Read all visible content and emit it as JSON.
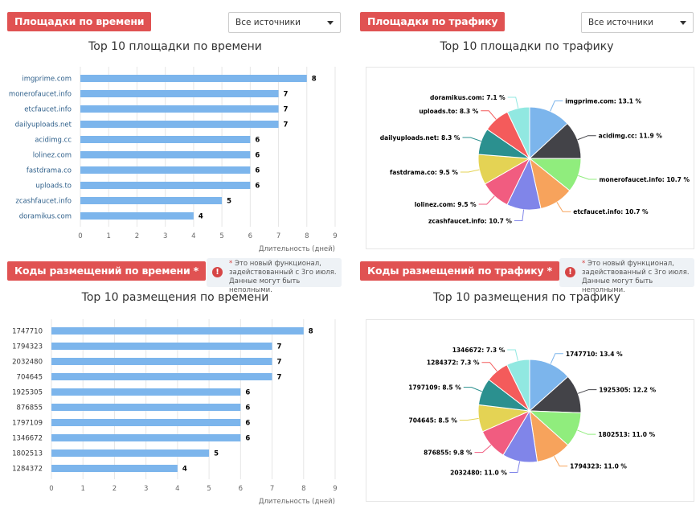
{
  "panels": [
    {
      "badge": "Площадки по времени",
      "select": "Все источники",
      "title": "Top 10 площадки по времени"
    },
    {
      "badge": "Площадки по трафику",
      "select": "Все источники",
      "title": "Top 10 площадки по трафику"
    },
    {
      "badge": "Коды размещений по времени *",
      "title": "Top 10 размещения по времени",
      "notice": {
        "star": "*",
        "text": " Это новый функционал, задействованный с 3го июля. Данные могут быть неполными."
      }
    },
    {
      "badge": "Коды размещений по трафику *",
      "title": "Top 10 размещения по трафику",
      "notice": {
        "star": "*",
        "text": " Это новый функционал, задействованный с 3го июля. Данные могут быть неполными."
      }
    }
  ],
  "chart_data": [
    {
      "type": "bar",
      "orientation": "horizontal",
      "title": "Top 10 площадки по времени",
      "categories": [
        "imgprime.com",
        "monerofaucet.info",
        "etcfaucet.info",
        "dailyuploads.net",
        "acidimg.cc",
        "lolinez.com",
        "fastdrama.co",
        "uploads.to",
        "zcashfaucet.info",
        "doramikus.com"
      ],
      "values": [
        8,
        7,
        7,
        7,
        6,
        6,
        6,
        6,
        5,
        4
      ],
      "xlabel": "Длительность (дней)",
      "xlim": [
        0,
        9
      ],
      "xticks": [
        "0",
        "1",
        "2",
        "3",
        "4",
        "5",
        "6",
        "7",
        "8",
        "9"
      ],
      "color": "#7cb5ec",
      "grid": true
    },
    {
      "type": "pie",
      "title": "Top 10 площадки по трафику",
      "labels": [
        "imgprime.com",
        "acidimg.cc",
        "monerofaucet.info",
        "etcfaucet.info",
        "zcashfaucet.info",
        "lolinez.com",
        "fastdrama.co",
        "dailyuploads.net",
        "uploads.to",
        "doramikus.com"
      ],
      "values": [
        13.1,
        11.9,
        10.7,
        10.7,
        10.7,
        9.5,
        9.5,
        8.3,
        8.3,
        7.1
      ],
      "label_texts": [
        "imgprime.com: 13.1 %",
        "acidimg.cc: 11.9 %",
        "monerofaucet.info: 10.7 %",
        "etcfaucet.info: 10.7 %",
        "zcashfaucet.info: 10.7 %",
        "lolinez.com: 9.5 %",
        "fastdrama.co: 9.5 %",
        "dailyuploads.net: 8.3 %",
        "uploads.to: 8.3 %",
        "doramikus.com: 7.1 %"
      ],
      "colors": [
        "#7cb5ec",
        "#434348",
        "#90ed7d",
        "#f7a35c",
        "#8085e9",
        "#f15c80",
        "#e4d354",
        "#2b908f",
        "#f45b5b",
        "#91e8e1"
      ]
    },
    {
      "type": "bar",
      "orientation": "horizontal",
      "title": "Top 10 размещения по времени",
      "categories": [
        "1747710",
        "1794323",
        "2032480",
        "704645",
        "1925305",
        "876855",
        "1797109",
        "1346672",
        "1802513",
        "1284372"
      ],
      "values": [
        8,
        7,
        7,
        7,
        6,
        6,
        6,
        6,
        5,
        4
      ],
      "xlabel": "Длительность (дней)",
      "xlim": [
        0,
        9
      ],
      "xticks": [
        "0",
        "1",
        "2",
        "3",
        "4",
        "5",
        "6",
        "7",
        "8",
        "9"
      ],
      "color": "#7cb5ec",
      "grid": true
    },
    {
      "type": "pie",
      "title": "Top 10 размещения по трафику",
      "labels": [
        "1747710",
        "1925305",
        "1802513",
        "1794323",
        "2032480",
        "876855",
        "704645",
        "1797109",
        "1284372",
        "1346672"
      ],
      "values": [
        13.4,
        12.2,
        11.0,
        11.0,
        11.0,
        9.8,
        8.5,
        8.5,
        7.3,
        7.3
      ],
      "label_texts": [
        "1747710: 13.4 %",
        "1925305: 12.2 %",
        "1802513: 11.0 %",
        "1794323: 11.0 %",
        "2032480: 11.0 %",
        "876855: 9.8 %",
        "704645: 8.5 %",
        "1797109: 8.5 %",
        "1284372: 7.3 %",
        "1346672: 7.3 %"
      ],
      "colors": [
        "#7cb5ec",
        "#434348",
        "#90ed7d",
        "#f7a35c",
        "#8085e9",
        "#f15c80",
        "#e4d354",
        "#2b908f",
        "#f45b5b",
        "#91e8e1"
      ]
    }
  ]
}
